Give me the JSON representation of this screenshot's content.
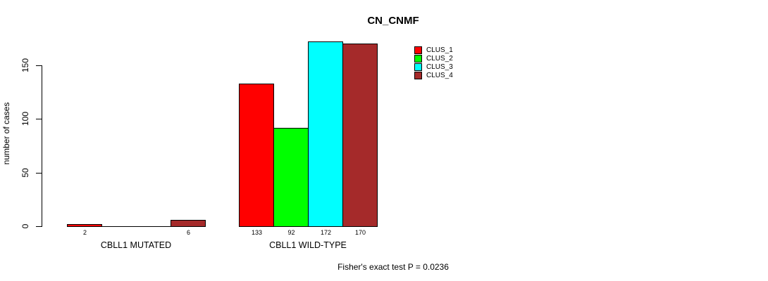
{
  "title": "CN_CNMF",
  "ylabel": "number of cases",
  "footer": "Fisher's exact test P = 0.0236",
  "chart_data": {
    "type": "bar",
    "title": "CN_CNMF",
    "xlabel": "",
    "ylabel": "number of cases",
    "categories": [
      "CBLL1 MUTATED",
      "CBLL1 WILD-TYPE"
    ],
    "series": [
      {
        "name": "CLUS_1",
        "color": "#ff0000",
        "values": [
          2,
          133
        ]
      },
      {
        "name": "CLUS_2",
        "color": "#00ff00",
        "values": [
          0,
          92
        ]
      },
      {
        "name": "CLUS_3",
        "color": "#00ffff",
        "values": [
          0,
          172
        ]
      },
      {
        "name": "CLUS_4",
        "color": "#a52a2a",
        "values": [
          6,
          170
        ]
      }
    ],
    "yticks": [
      0,
      50,
      100,
      150
    ],
    "ylim": [
      0,
      172
    ],
    "grid": false,
    "legend_position": "top-right",
    "bar_labels_shown_for_nonzero_only": true,
    "annotation": "Fisher's exact test P = 0.0236"
  }
}
